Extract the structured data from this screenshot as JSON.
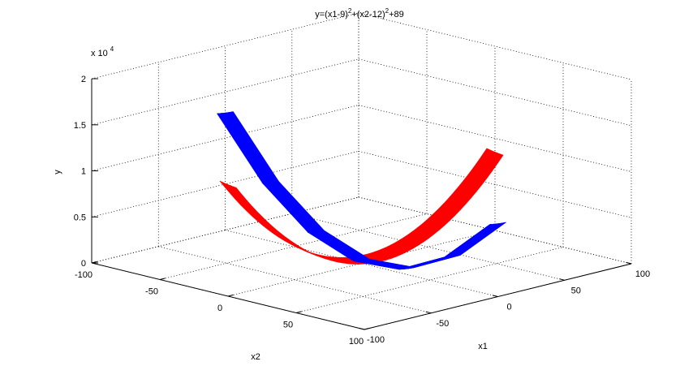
{
  "chart_data": {
    "type": "surface3d",
    "title": {
      "base": "y=(x1-9)",
      "sup1": "2",
      "mid": "+(x2-12)",
      "sup2": "2",
      "end": "+89"
    },
    "xlabel": "x1",
    "ylabel": "x2",
    "zlabel": "y",
    "x1_range": [
      -100,
      100
    ],
    "x2_range": [
      -100,
      100
    ],
    "z_range": [
      0,
      20000
    ],
    "x1_ticks": [
      "-100",
      "-50",
      "0",
      "50",
      "100"
    ],
    "x2_ticks": [
      "-100",
      "-50",
      "0",
      "50",
      "100"
    ],
    "z_ticks": [
      "0",
      "0.5",
      "1",
      "1.5",
      "2"
    ],
    "z_scale": {
      "base": "x 10",
      "exponent": "4"
    },
    "grid": true,
    "function": "y=(x1-9)^2+(x2-12)^2+89",
    "series": [
      {
        "color": "#ff0000",
        "x1": [
          -100,
          100
        ],
        "x2": [
          -6,
          6
        ]
      },
      {
        "color": "#0000ff",
        "x1": [
          -6,
          6
        ],
        "x2": [
          -100,
          100
        ]
      }
    ]
  }
}
